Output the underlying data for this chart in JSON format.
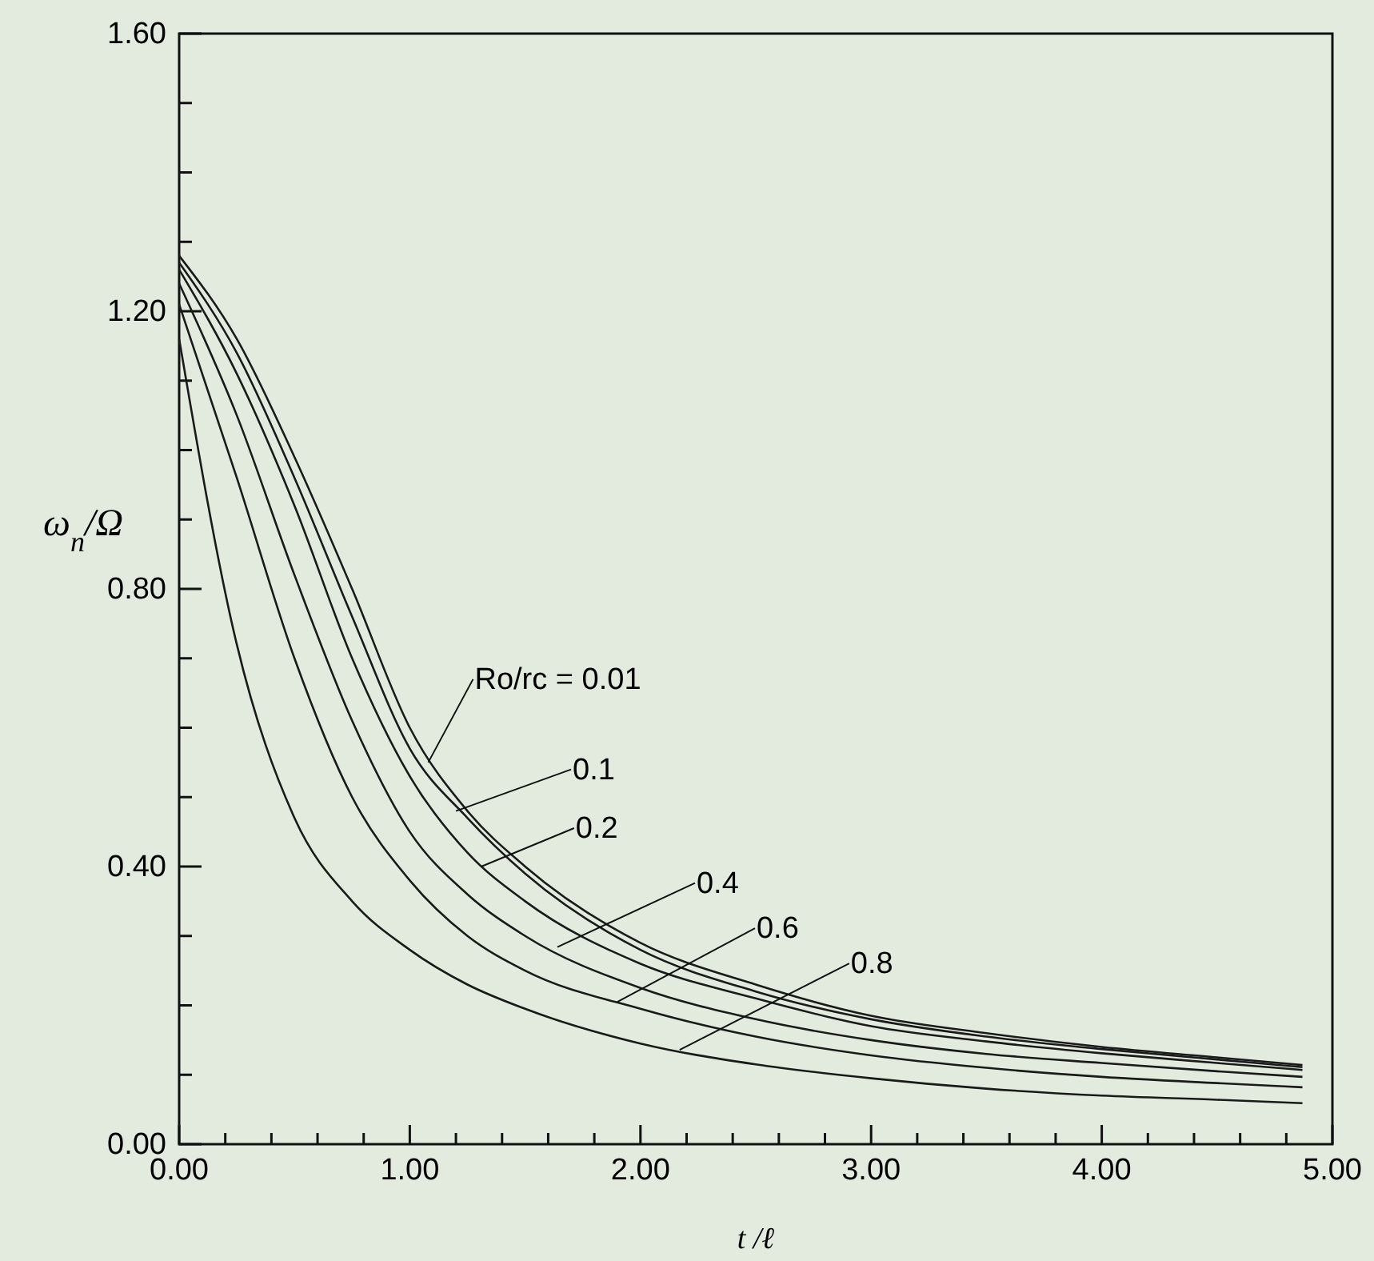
{
  "chart_data": {
    "type": "line",
    "xlabel": "t /ℓ",
    "ylabel": "ω$_{n}$/Ω",
    "x": [
      0,
      0.25,
      0.5,
      0.75,
      1,
      1.25,
      1.5,
      2,
      2.5,
      3,
      3.5,
      4,
      4.5,
      4.87
    ],
    "series": [
      {
        "color": "#1a1a1a",
        "values": [
          1.28,
          1.16,
          0.99,
          0.8,
          0.6,
          0.48,
          0.4,
          0.29,
          0.23,
          0.185,
          0.16,
          0.14,
          0.125,
          0.114
        ]
      },
      {
        "color": "#1a1a1a",
        "values": [
          1.27,
          1.14,
          0.96,
          0.76,
          0.57,
          0.47,
          0.39,
          0.28,
          0.22,
          0.18,
          0.155,
          0.137,
          0.122,
          0.111
        ]
      },
      {
        "color": "#1a1a1a",
        "values": [
          1.26,
          1.11,
          0.92,
          0.7,
          0.53,
          0.42,
          0.35,
          0.26,
          0.21,
          0.17,
          0.148,
          0.131,
          0.117,
          0.107
        ]
      },
      {
        "color": "#1a1a1a",
        "values": [
          1.24,
          1.05,
          0.82,
          0.61,
          0.45,
          0.36,
          0.3,
          0.225,
          0.18,
          0.15,
          0.13,
          0.117,
          0.105,
          0.097
        ]
      },
      {
        "color": "#1a1a1a",
        "values": [
          1.21,
          0.96,
          0.7,
          0.5,
          0.38,
          0.3,
          0.25,
          0.195,
          0.155,
          0.128,
          0.11,
          0.097,
          0.088,
          0.082
        ]
      },
      {
        "color": "#1a1a1a",
        "values": [
          1.16,
          0.72,
          0.47,
          0.35,
          0.28,
          0.23,
          0.195,
          0.145,
          0.115,
          0.095,
          0.08,
          0.07,
          0.064,
          0.059
        ]
      }
    ],
    "annotations": [
      {
        "text": "Ro/rc = 0.01",
        "x": 1.08,
        "y": 0.55
      },
      {
        "text": "0.1",
        "x": 1.2,
        "y": 0.48
      },
      {
        "text": "0.2",
        "x": 1.31,
        "y": 0.4
      },
      {
        "text": "0.4",
        "x": 1.64,
        "y": 0.284
      },
      {
        "text": "0.6",
        "x": 1.9,
        "y": 0.205
      },
      {
        "text": "0.8",
        "x": 2.17,
        "y": 0.136
      }
    ],
    "xlim": [
      0,
      5
    ],
    "ylim": [
      0,
      1.6
    ],
    "xticks": [
      {
        "value": 0,
        "label": "0.00"
      },
      {
        "value": 0.2,
        "label": null
      },
      {
        "value": 0.4,
        "label": null
      },
      {
        "value": 0.6,
        "label": null
      },
      {
        "value": 0.8,
        "label": null
      },
      {
        "value": 1,
        "label": "1.00"
      },
      {
        "value": 1.2,
        "label": null
      },
      {
        "value": 1.4,
        "label": null
      },
      {
        "value": 1.6,
        "label": null
      },
      {
        "value": 1.8,
        "label": null
      },
      {
        "value": 2,
        "label": "2.00"
      },
      {
        "value": 2.2,
        "label": null
      },
      {
        "value": 2.4,
        "label": null
      },
      {
        "value": 2.6,
        "label": null
      },
      {
        "value": 2.8,
        "label": null
      },
      {
        "value": 3,
        "label": "3.00"
      },
      {
        "value": 3.2,
        "label": null
      },
      {
        "value": 3.4,
        "label": null
      },
      {
        "value": 3.6,
        "label": null
      },
      {
        "value": 3.8,
        "label": null
      },
      {
        "value": 4,
        "label": "4.00"
      },
      {
        "value": 4.2,
        "label": null
      },
      {
        "value": 4.4,
        "label": null
      },
      {
        "value": 4.6,
        "label": null
      },
      {
        "value": 4.8,
        "label": null
      },
      {
        "value": 5,
        "label": "5.00"
      }
    ],
    "yticks": [
      {
        "value": 0,
        "label": "0.00"
      },
      {
        "value": 0.1,
        "label": null
      },
      {
        "value": 0.2,
        "label": null
      },
      {
        "value": 0.3,
        "label": null
      },
      {
        "value": 0.4,
        "label": "0.40"
      },
      {
        "value": 0.5,
        "label": null
      },
      {
        "value": 0.6,
        "label": null
      },
      {
        "value": 0.7,
        "label": null
      },
      {
        "value": 0.8,
        "label": "0.80"
      },
      {
        "value": 0.9,
        "label": null
      },
      {
        "value": 1.0,
        "label": null
      },
      {
        "value": 1.1,
        "label": null
      },
      {
        "value": 1.2,
        "label": "1.20"
      },
      {
        "value": 1.3,
        "label": null
      },
      {
        "value": 1.4,
        "label": null
      },
      {
        "value": 1.5,
        "label": null
      },
      {
        "value": 1.6,
        "label": "1.60"
      }
    ],
    "grid": false,
    "marker": "none",
    "line_style": "solid"
  }
}
